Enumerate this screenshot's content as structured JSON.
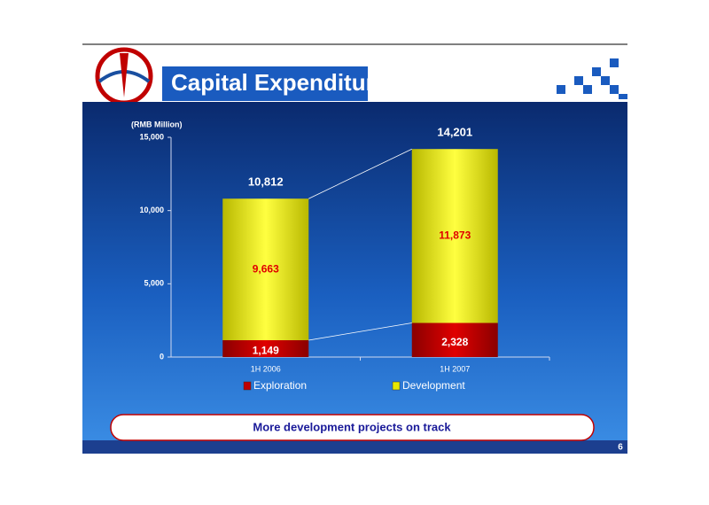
{
  "slide": {
    "title": "Capital Expenditure",
    "note": "More development projects on track",
    "page_number": "6"
  },
  "chart_data": {
    "type": "stacked_bar",
    "y_label": "(RMB Million)",
    "categories": [
      "1H 2006",
      "1H 2007"
    ],
    "series": [
      {
        "name": "Exploration",
        "color": "#c00000",
        "values": [
          1149,
          2328
        ],
        "value_labels": [
          "1,149",
          "2,328"
        ]
      },
      {
        "name": "Development",
        "color": "#e8e800",
        "values": [
          9663,
          11873
        ],
        "value_labels": [
          "9,663",
          "11,873"
        ]
      }
    ],
    "totals": {
      "values": [
        10812,
        14201
      ],
      "value_labels": [
        "10,812",
        "14,201"
      ]
    },
    "ylim": [
      0,
      15000
    ],
    "yticks": [
      0,
      {
        "value": 5000,
        "label": "5,000"
      },
      {
        "value": 10000,
        "label": "10,000"
      },
      {
        "value": 15000,
        "label": "15,000"
      }
    ]
  }
}
